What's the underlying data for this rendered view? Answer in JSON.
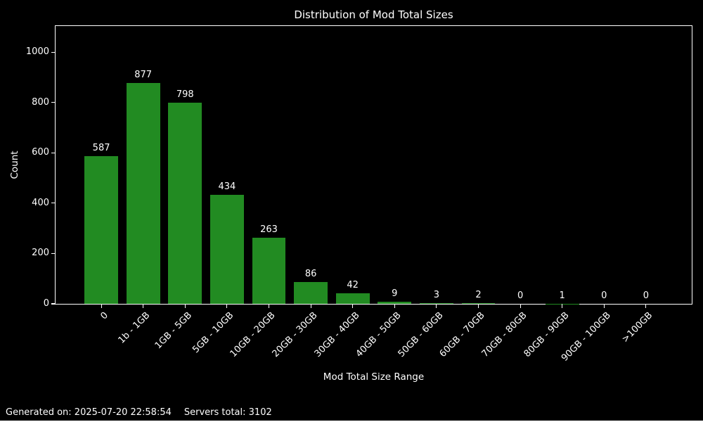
{
  "chart_data": {
    "type": "bar",
    "title": "Distribution of Mod Total Sizes",
    "xlabel": "Mod Total Size Range",
    "ylabel": "Count",
    "categories": [
      "0",
      "1b - 1GB",
      "1GB - 5GB",
      "5GB - 10GB",
      "10GB - 20GB",
      "20GB - 30GB",
      "30GB - 40GB",
      "40GB - 50GB",
      "50GB - 60GB",
      "60GB - 70GB",
      "70GB - 80GB",
      "80GB - 90GB",
      "90GB - 100GB",
      ">100GB"
    ],
    "values": [
      587,
      877,
      798,
      434,
      263,
      86,
      42,
      9,
      3,
      2,
      0,
      1,
      0,
      0
    ],
    "yticks": [
      0,
      200,
      400,
      600,
      800,
      1000
    ],
    "ylim": [
      0,
      1104
    ],
    "grid": false,
    "legend": false,
    "bar_color": "#228B22",
    "background_color": "#000000",
    "text_color": "#ffffff"
  },
  "footer": {
    "generated": "Generated on: 2025-07-20 22:58:54",
    "servers_total": "Servers total: 3102"
  }
}
